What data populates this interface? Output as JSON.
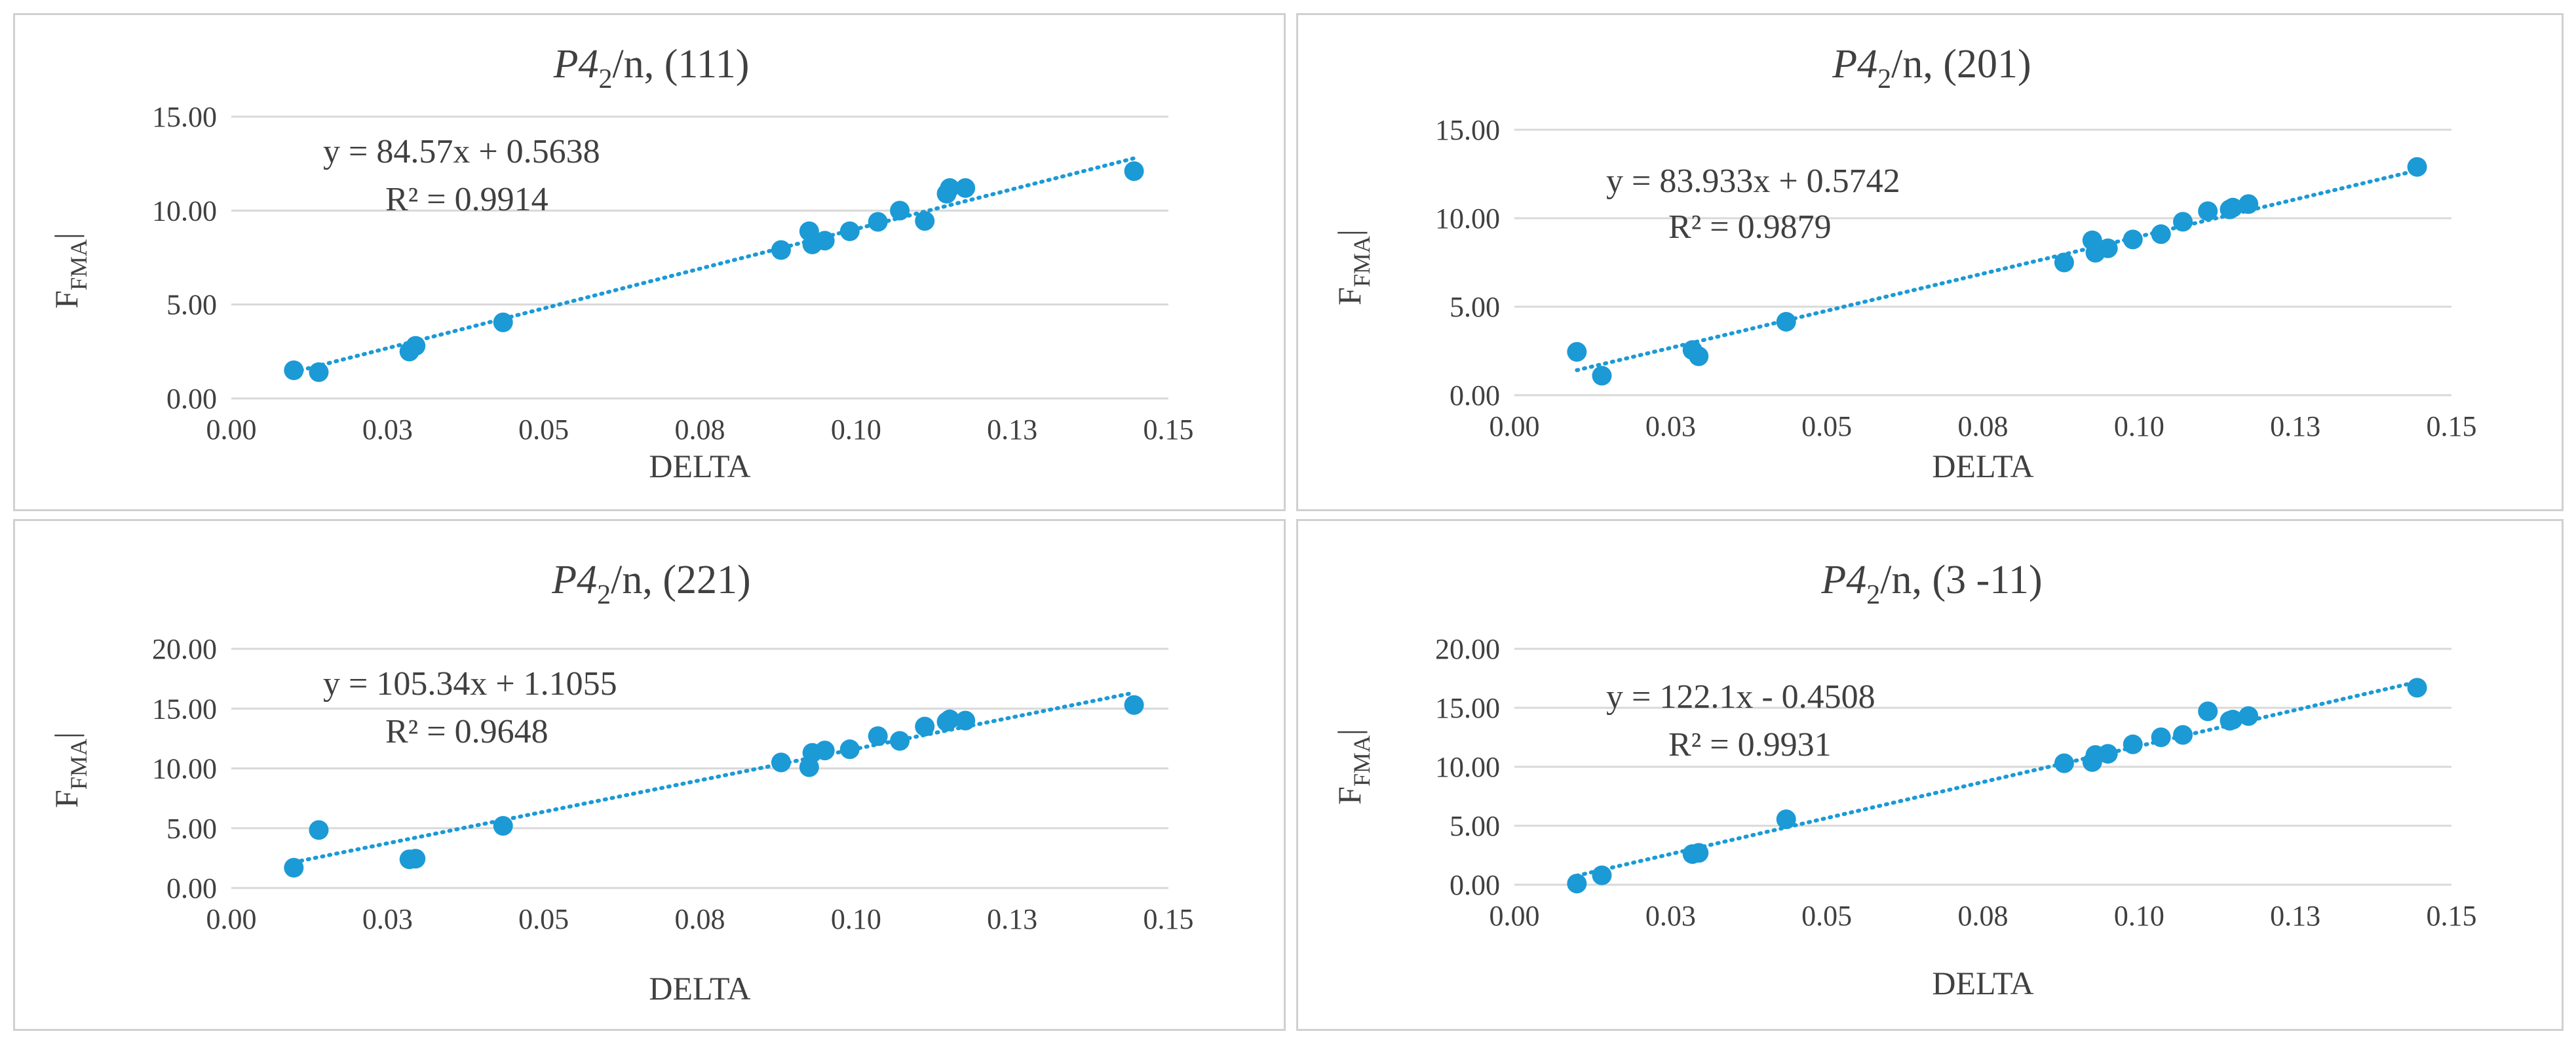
{
  "colors": {
    "marker": "#1b9ad6",
    "trend": "#1b9ad6",
    "grid": "#d9d9d9",
    "text": "#404040"
  },
  "chart_data": [
    {
      "type": "scatter",
      "title_prefix": "P4",
      "title_sub": "2",
      "title_suffix": "/n, (111)",
      "xlabel": "DELTA",
      "ylabel_main": "F",
      "ylabel_sub": "FMA",
      "ylabel_suffix": "|",
      "xlim": [
        0,
        0.15
      ],
      "ylim": [
        0,
        15
      ],
      "xticks": [
        0,
        0.025,
        0.05,
        0.075,
        0.1,
        0.125,
        0.15
      ],
      "xtick_labels": [
        "0.00",
        "0.03",
        "0.05",
        "0.08",
        "0.10",
        "0.13",
        "0.15"
      ],
      "yticks": [
        0,
        5,
        10,
        15
      ],
      "ytick_labels": [
        "0.00",
        "5.00",
        "10.00",
        "15.00"
      ],
      "equation": "y = 84.57x + 0.5638",
      "r2": "R² = 0.9914",
      "trend": {
        "slope": 84.57,
        "intercept": 0.5638
      },
      "points": [
        [
          0.01,
          1.5
        ],
        [
          0.014,
          1.4
        ],
        [
          0.0285,
          2.5
        ],
        [
          0.0295,
          2.8
        ],
        [
          0.0435,
          4.05
        ],
        [
          0.088,
          7.9
        ],
        [
          0.0925,
          8.9
        ],
        [
          0.093,
          8.2
        ],
        [
          0.095,
          8.4
        ],
        [
          0.099,
          8.9
        ],
        [
          0.1035,
          9.4
        ],
        [
          0.107,
          10.0
        ],
        [
          0.111,
          9.45
        ],
        [
          0.1145,
          10.9
        ],
        [
          0.115,
          11.2
        ],
        [
          0.1175,
          11.2
        ],
        [
          0.1445,
          12.1
        ]
      ]
    },
    {
      "type": "scatter",
      "title_prefix": "P4",
      "title_sub": "2",
      "title_suffix": "/n, (201)",
      "xlabel": "DELTA",
      "ylabel_main": "F",
      "ylabel_sub": "FMA",
      "ylabel_suffix": "|",
      "xlim": [
        0,
        0.15
      ],
      "ylim": [
        0,
        15
      ],
      "xticks": [
        0,
        0.025,
        0.05,
        0.075,
        0.1,
        0.125,
        0.15
      ],
      "xtick_labels": [
        "0.00",
        "0.03",
        "0.05",
        "0.08",
        "0.10",
        "0.13",
        "0.15"
      ],
      "yticks": [
        0,
        5,
        10,
        15
      ],
      "ytick_labels": [
        "0.00",
        "5.00",
        "10.00",
        "15.00"
      ],
      "equation": "y = 83.933x + 0.5742",
      "r2": "R² = 0.9879",
      "trend": {
        "slope": 83.933,
        "intercept": 0.5742
      },
      "points": [
        [
          0.01,
          2.45
        ],
        [
          0.014,
          1.1
        ],
        [
          0.0285,
          2.55
        ],
        [
          0.0295,
          2.2
        ],
        [
          0.0435,
          4.15
        ],
        [
          0.088,
          7.5
        ],
        [
          0.0925,
          8.75
        ],
        [
          0.093,
          8.05
        ],
        [
          0.095,
          8.3
        ],
        [
          0.099,
          8.8
        ],
        [
          0.1035,
          9.1
        ],
        [
          0.107,
          9.8
        ],
        [
          0.111,
          10.4
        ],
        [
          0.1145,
          10.5
        ],
        [
          0.115,
          10.6
        ],
        [
          0.1175,
          10.8
        ],
        [
          0.1445,
          12.9
        ]
      ]
    },
    {
      "type": "scatter",
      "title_prefix": "P4",
      "title_sub": "2",
      "title_suffix": "/n, (221)",
      "xlabel": "DELTA",
      "ylabel_main": "F",
      "ylabel_sub": "FMA",
      "ylabel_suffix": "|",
      "xlim": [
        0,
        0.15
      ],
      "ylim": [
        0,
        20
      ],
      "xticks": [
        0,
        0.025,
        0.05,
        0.075,
        0.1,
        0.125,
        0.15
      ],
      "xtick_labels": [
        "0.00",
        "0.03",
        "0.05",
        "0.08",
        "0.10",
        "0.13",
        "0.15"
      ],
      "yticks": [
        0,
        5,
        10,
        15,
        20
      ],
      "ytick_labels": [
        "0.00",
        "5.00",
        "10.00",
        "15.00",
        "20.00"
      ],
      "equation": "y = 105.34x + 1.1055",
      "r2": "R² = 0.9648",
      "trend": {
        "slope": 105.34,
        "intercept": 1.1055
      },
      "points": [
        [
          0.01,
          1.7
        ],
        [
          0.014,
          4.85
        ],
        [
          0.0285,
          2.4
        ],
        [
          0.0295,
          2.45
        ],
        [
          0.0435,
          5.2
        ],
        [
          0.088,
          10.5
        ],
        [
          0.0925,
          10.1
        ],
        [
          0.093,
          11.3
        ],
        [
          0.095,
          11.5
        ],
        [
          0.099,
          11.6
        ],
        [
          0.1035,
          12.7
        ],
        [
          0.107,
          12.3
        ],
        [
          0.111,
          13.5
        ],
        [
          0.1145,
          13.9
        ],
        [
          0.115,
          14.1
        ],
        [
          0.1175,
          14.0
        ],
        [
          0.1445,
          15.3
        ]
      ]
    },
    {
      "type": "scatter",
      "title_prefix": "P4",
      "title_sub": "2",
      "title_suffix": "/n, (3 -11)",
      "xlabel": "DELTA",
      "ylabel_main": "F",
      "ylabel_sub": "FMA",
      "ylabel_suffix": "|",
      "xlim": [
        0,
        0.15
      ],
      "ylim": [
        0,
        20
      ],
      "xticks": [
        0,
        0.025,
        0.05,
        0.075,
        0.1,
        0.125,
        0.15
      ],
      "xtick_labels": [
        "0.00",
        "0.03",
        "0.05",
        "0.08",
        "0.10",
        "0.13",
        "0.15"
      ],
      "yticks": [
        0,
        5,
        10,
        15,
        20
      ],
      "ytick_labels": [
        "0.00",
        "5.00",
        "10.00",
        "15.00",
        "20.00"
      ],
      "equation": "y = 122.1x - 0.4508",
      "r2": "R² = 0.9931",
      "trend": {
        "slope": 122.1,
        "intercept": -0.4508
      },
      "points": [
        [
          0.01,
          0.1
        ],
        [
          0.014,
          0.8
        ],
        [
          0.0285,
          2.6
        ],
        [
          0.0295,
          2.7
        ],
        [
          0.0435,
          5.55
        ],
        [
          0.088,
          10.3
        ],
        [
          0.0925,
          10.4
        ],
        [
          0.093,
          11.0
        ],
        [
          0.095,
          11.1
        ],
        [
          0.099,
          11.9
        ],
        [
          0.1035,
          12.5
        ],
        [
          0.107,
          12.7
        ],
        [
          0.111,
          14.7
        ],
        [
          0.1145,
          13.9
        ],
        [
          0.115,
          14.0
        ],
        [
          0.1175,
          14.3
        ],
        [
          0.1445,
          16.7
        ]
      ]
    }
  ]
}
